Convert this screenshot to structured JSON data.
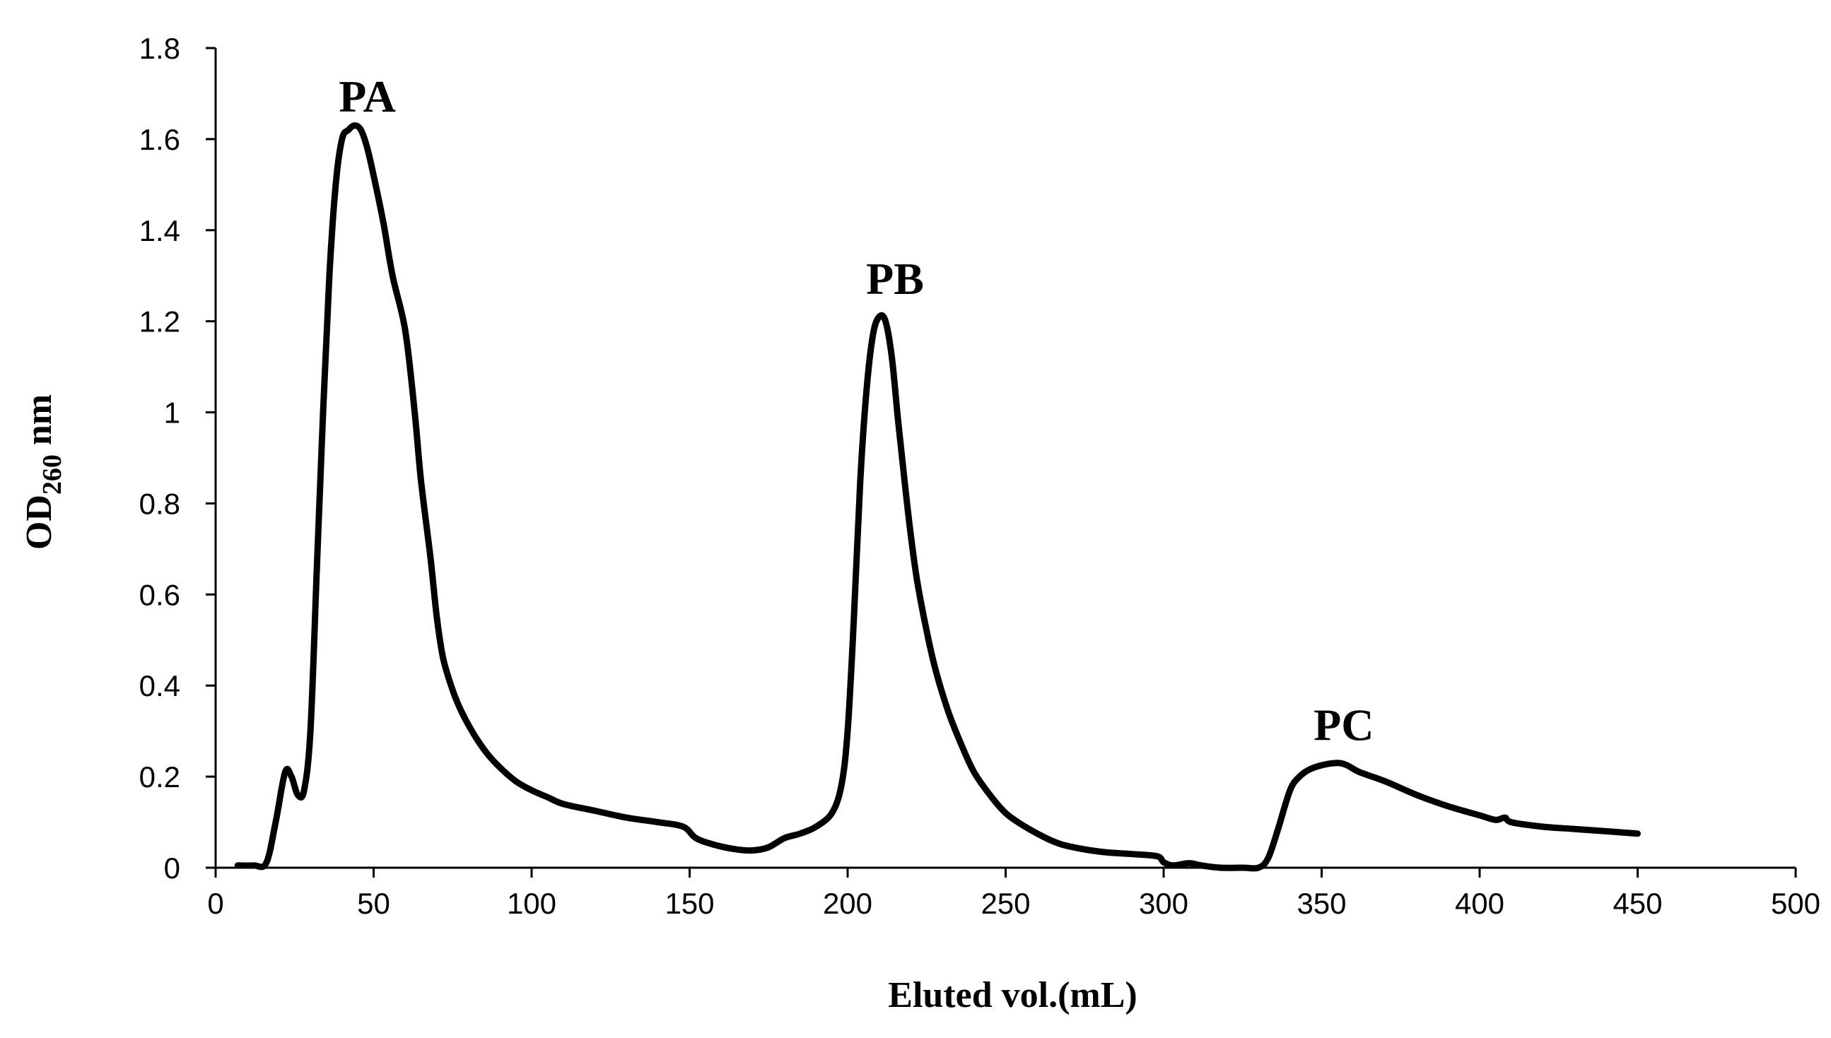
{
  "chart_data": {
    "type": "line",
    "title": "",
    "xlabel": "Eluted vol.(mL)",
    "ylabel": {
      "main": "OD",
      "sub": "260",
      "unit": " nm"
    },
    "xlim": [
      0,
      500
    ],
    "ylim": [
      0,
      1.8
    ],
    "x_ticks": [
      0,
      50,
      100,
      150,
      200,
      250,
      300,
      350,
      400,
      450,
      500
    ],
    "x_tick_labels": [
      "0",
      "50",
      "100",
      "150",
      "200",
      "250",
      "300",
      "350",
      "400",
      "450",
      "500"
    ],
    "y_ticks": [
      0,
      0.2,
      0.4,
      0.6,
      0.8,
      1.0,
      1.2,
      1.4,
      1.6,
      1.8
    ],
    "y_tick_labels": [
      "0",
      "0.2",
      "0.4",
      "0.6",
      "0.8",
      "1",
      "1.2",
      "1.4",
      "1.6",
      "1.8"
    ],
    "grid": false,
    "legend": "none",
    "line_color": "#000000",
    "series": [
      {
        "name": "OD260",
        "x": [
          7,
          12,
          16,
          19,
          22,
          24,
          26,
          28,
          30,
          32,
          34,
          36,
          38,
          40,
          42,
          44,
          46,
          48,
          50,
          53,
          56,
          60,
          63,
          65,
          68,
          70,
          72,
          75,
          78,
          82,
          86,
          90,
          95,
          100,
          105,
          110,
          120,
          130,
          140,
          148,
          152,
          158,
          165,
          170,
          175,
          180,
          185,
          190,
          195,
          198,
          200,
          202,
          204,
          206,
          208,
          210,
          212,
          214,
          216,
          218,
          220,
          222,
          225,
          228,
          232,
          236,
          240,
          245,
          250,
          255,
          260,
          265,
          270,
          280,
          290,
          298,
          300,
          303,
          308,
          312,
          318,
          325,
          330,
          333,
          336,
          340,
          343,
          346,
          350,
          355,
          358,
          362,
          370,
          380,
          390,
          400,
          405,
          408,
          410,
          420,
          430,
          440,
          450
        ],
        "y": [
          0.005,
          0.005,
          0.01,
          0.1,
          0.21,
          0.2,
          0.16,
          0.17,
          0.3,
          0.65,
          1.0,
          1.3,
          1.5,
          1.6,
          1.62,
          1.63,
          1.62,
          1.58,
          1.52,
          1.42,
          1.3,
          1.18,
          1.0,
          0.85,
          0.68,
          0.55,
          0.46,
          0.39,
          0.34,
          0.29,
          0.25,
          0.22,
          0.19,
          0.17,
          0.155,
          0.14,
          0.125,
          0.11,
          0.1,
          0.09,
          0.065,
          0.05,
          0.04,
          0.038,
          0.045,
          0.065,
          0.075,
          0.09,
          0.12,
          0.18,
          0.3,
          0.55,
          0.85,
          1.05,
          1.17,
          1.21,
          1.2,
          1.12,
          0.98,
          0.85,
          0.73,
          0.63,
          0.52,
          0.43,
          0.34,
          0.27,
          0.21,
          0.16,
          0.12,
          0.095,
          0.075,
          0.058,
          0.047,
          0.035,
          0.03,
          0.025,
          0.012,
          0.005,
          0.01,
          0.005,
          0.0,
          0.0,
          0.0,
          0.02,
          0.08,
          0.17,
          0.2,
          0.215,
          0.225,
          0.23,
          0.225,
          0.21,
          0.19,
          0.16,
          0.135,
          0.115,
          0.105,
          0.11,
          0.1,
          0.09,
          0.085,
          0.08,
          0.075
        ]
      }
    ],
    "annotations": [
      {
        "text": "PA",
        "x": 48,
        "y": 1.66
      },
      {
        "text": "PB",
        "x": 215,
        "y": 1.26
      },
      {
        "text": "PC",
        "x": 357,
        "y": 0.28
      }
    ]
  }
}
